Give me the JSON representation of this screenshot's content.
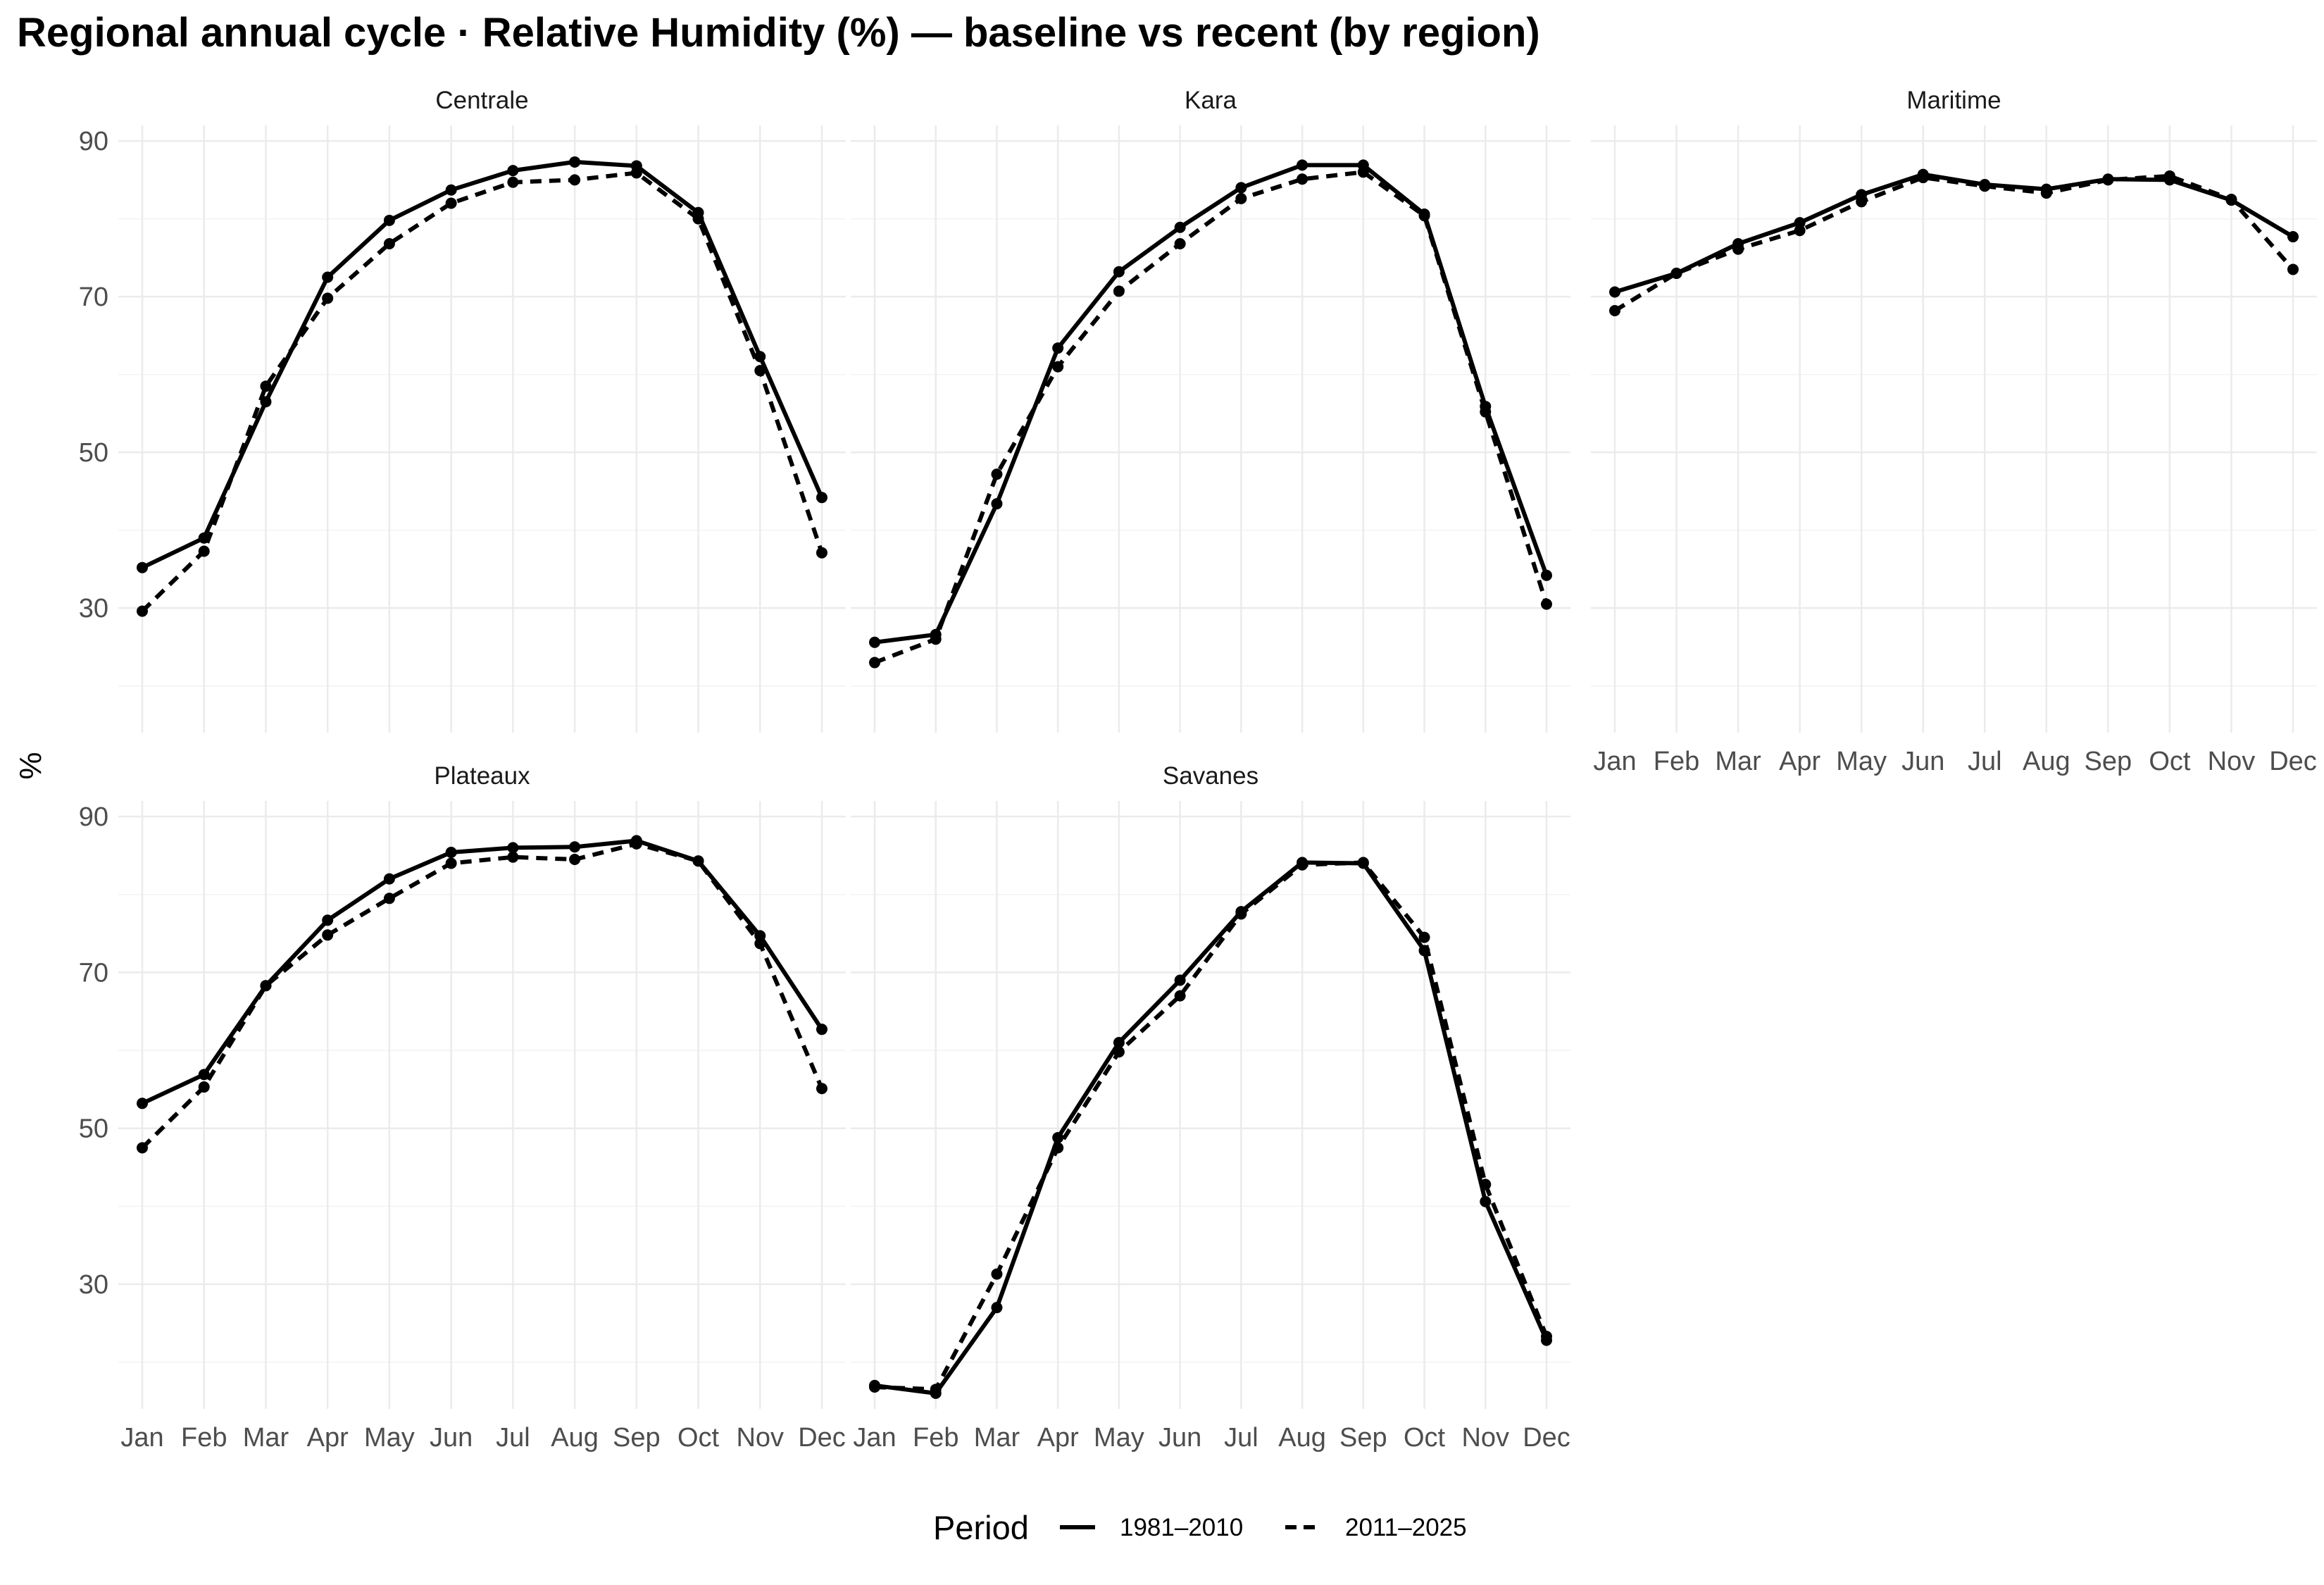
{
  "chart_data": {
    "type": "line",
    "title": "Regional annual cycle · Relative Humidity (%) — baseline vs recent (by region)",
    "xlabel": "",
    "ylabel": "%",
    "categories": [
      "Jan",
      "Feb",
      "Mar",
      "Apr",
      "May",
      "Jun",
      "Jul",
      "Aug",
      "Sep",
      "Oct",
      "Nov",
      "Dec"
    ],
    "y_ticks": [
      "90",
      "70",
      "50",
      "30"
    ],
    "ylim": [
      14,
      92
    ],
    "grid": true,
    "facet_layout": "3 columns, 2 rows",
    "legend": {
      "title": "Period",
      "position": "bottom",
      "entries": [
        {
          "label": "1981–2010",
          "linetype": "solid"
        },
        {
          "label": "2011–2025",
          "linetype": "dashed"
        }
      ]
    },
    "panels": [
      {
        "name": "Centrale",
        "series": [
          {
            "period": "1981–2010",
            "values": [
              35.2,
              39.0,
              56.5,
              72.5,
              79.8,
              83.7,
              86.2,
              87.3,
              86.8,
              80.8,
              62.3,
              44.2
            ]
          },
          {
            "period": "2011–2025",
            "values": [
              29.6,
              37.3,
              58.5,
              69.8,
              76.8,
              82.0,
              84.7,
              85.0,
              85.9,
              80.0,
              60.5,
              37.1
            ]
          }
        ]
      },
      {
        "name": "Kara",
        "series": [
          {
            "period": "1981–2010",
            "values": [
              25.6,
              26.6,
              43.4,
              63.4,
              73.2,
              78.9,
              84.0,
              86.9,
              86.9,
              80.6,
              55.9,
              34.2
            ]
          },
          {
            "period": "2011–2025",
            "values": [
              23.0,
              26.0,
              47.2,
              61.0,
              70.7,
              76.8,
              82.6,
              85.1,
              86.0,
              80.4,
              55.2,
              30.5
            ]
          }
        ]
      },
      {
        "name": "Maritime",
        "series": [
          {
            "period": "1981–2010",
            "values": [
              70.6,
              73.0,
              76.8,
              79.5,
              83.1,
              85.7,
              84.4,
              83.8,
              85.1,
              85.0,
              82.4,
              77.7
            ]
          },
          {
            "period": "2011–2025",
            "values": [
              68.2,
              73.0,
              76.1,
              78.5,
              82.2,
              85.3,
              84.2,
              83.3,
              85.0,
              85.5,
              82.5,
              73.5
            ]
          }
        ]
      },
      {
        "name": "Plateaux",
        "series": [
          {
            "period": "1981–2010",
            "values": [
              53.2,
              56.9,
              68.3,
              76.7,
              82.0,
              85.4,
              86.0,
              86.1,
              86.9,
              84.3,
              74.7,
              62.7
            ]
          },
          {
            "period": "2011–2025",
            "values": [
              47.5,
              55.3,
              68.3,
              74.8,
              79.5,
              84.0,
              84.8,
              84.5,
              86.5,
              84.3,
              73.7,
              55.1
            ]
          }
        ]
      },
      {
        "name": "Savanes",
        "series": [
          {
            "period": "1981–2010",
            "values": [
              17.0,
              16.0,
              27.0,
              48.8,
              61.0,
              69.0,
              77.8,
              84.1,
              84.0,
              72.8,
              40.6,
              22.8
            ]
          },
          {
            "period": "2011–2025",
            "values": [
              16.8,
              16.5,
              31.3,
              47.5,
              59.8,
              67.0,
              77.5,
              83.8,
              84.1,
              74.5,
              42.8,
              23.3
            ]
          }
        ]
      }
    ]
  }
}
